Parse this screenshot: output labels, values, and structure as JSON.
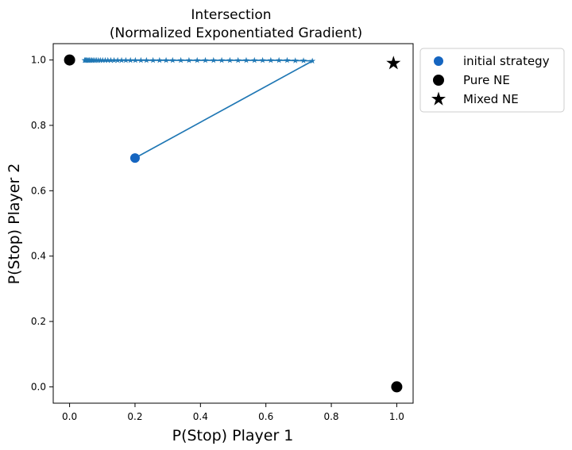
{
  "chart_data": {
    "type": "scatter",
    "title": "Intersection",
    "subtitle": "(Normalized Exponentiated Gradient)",
    "xlabel": "P(Stop) Player 1",
    "ylabel": "P(Stop) Player 2",
    "xlim": [
      -0.05,
      1.05
    ],
    "ylim": [
      -0.05,
      1.05
    ],
    "xticks": [
      "0.0",
      "0.2",
      "0.4",
      "0.6",
      "0.8",
      "1.0"
    ],
    "yticks": [
      "0.0",
      "0.2",
      "0.4",
      "0.6",
      "0.8",
      "1.0"
    ],
    "grid": false,
    "legend_position": "outside top-right",
    "colors": {
      "trajectory": "#1f77b4",
      "initial": "#1565c0",
      "ne": "#000000"
    },
    "series": [
      {
        "name": "initial strategy",
        "marker": "circle",
        "points": [
          [
            0.2,
            0.7
          ]
        ]
      },
      {
        "name": "Pure NE",
        "marker": "circle",
        "points": [
          [
            0.0,
            1.0
          ],
          [
            1.0,
            0.0
          ]
        ]
      },
      {
        "name": "Mixed NE",
        "marker": "star",
        "points": [
          [
            0.99,
            0.99
          ]
        ]
      }
    ],
    "trajectory": {
      "marker": "star",
      "points": [
        [
          0.2,
          0.7
        ],
        [
          0.742,
          0.997
        ],
        [
          0.715,
          0.998
        ],
        [
          0.69,
          0.998
        ],
        [
          0.665,
          0.999
        ],
        [
          0.64,
          0.999
        ],
        [
          0.615,
          0.999
        ],
        [
          0.59,
          0.999
        ],
        [
          0.565,
          0.999
        ],
        [
          0.54,
          0.999
        ],
        [
          0.515,
          0.999
        ],
        [
          0.49,
          0.999
        ],
        [
          0.465,
          0.999
        ],
        [
          0.44,
          0.999
        ],
        [
          0.415,
          0.999
        ],
        [
          0.39,
          0.999
        ],
        [
          0.365,
          0.999
        ],
        [
          0.34,
          0.999
        ],
        [
          0.315,
          0.999
        ],
        [
          0.295,
          0.999
        ],
        [
          0.275,
          0.999
        ],
        [
          0.255,
          0.999
        ],
        [
          0.235,
          0.999
        ],
        [
          0.218,
          0.999
        ],
        [
          0.201,
          0.999
        ],
        [
          0.186,
          0.999
        ],
        [
          0.172,
          0.999
        ],
        [
          0.159,
          0.999
        ],
        [
          0.147,
          0.999
        ],
        [
          0.136,
          0.999
        ],
        [
          0.126,
          0.999
        ],
        [
          0.117,
          0.999
        ],
        [
          0.109,
          0.999
        ],
        [
          0.101,
          0.999
        ],
        [
          0.094,
          0.999
        ],
        [
          0.088,
          0.999
        ],
        [
          0.082,
          0.999
        ],
        [
          0.077,
          0.999
        ],
        [
          0.072,
          0.999
        ],
        [
          0.068,
          0.999
        ],
        [
          0.064,
          0.999
        ],
        [
          0.06,
          0.999
        ],
        [
          0.057,
          0.999
        ],
        [
          0.054,
          0.999
        ],
        [
          0.051,
          0.999
        ],
        [
          0.048,
          0.999
        ],
        [
          0.046,
          0.999
        ]
      ]
    }
  }
}
